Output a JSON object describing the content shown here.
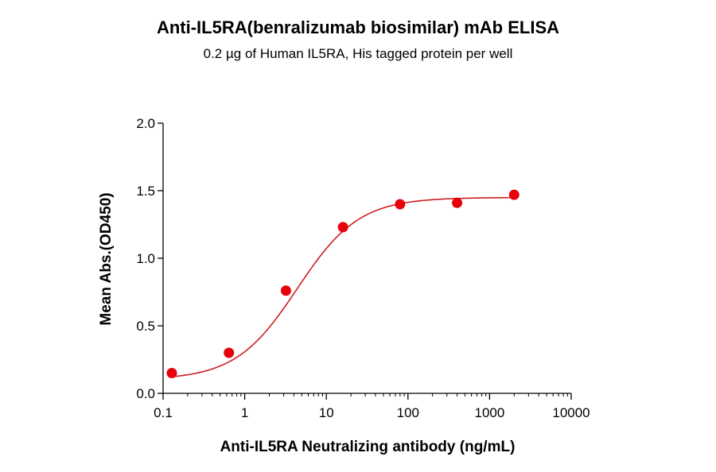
{
  "chart_data": {
    "type": "scatter",
    "title": "Anti-IL5RA(benralizumab biosimilar) mAb ELISA",
    "subtitle": "0.2 µg of Human IL5RA, His tagged protein per well",
    "xlabel": "Anti-IL5RA Neutralizing antibody (ng/mL)",
    "ylabel": "Mean Abs.(OD450)",
    "x_scale": "log",
    "xlim": [
      0.1,
      10000
    ],
    "ylim": [
      0.0,
      2.0
    ],
    "x_ticks": [
      "0.1",
      "1",
      "10",
      "100",
      "1000",
      "10000"
    ],
    "y_ticks": [
      "0.0",
      "0.5",
      "1.0",
      "1.5",
      "2.0"
    ],
    "grid": false,
    "legend": "none",
    "series": [
      {
        "x": [
          0.128,
          0.64,
          3.2,
          16,
          80,
          400,
          2000
        ],
        "y": [
          0.15,
          0.3,
          0.76,
          1.23,
          1.4,
          1.41,
          1.47
        ],
        "color": "#e8000b",
        "fit": "4PL sigmoidal curve"
      }
    ]
  }
}
